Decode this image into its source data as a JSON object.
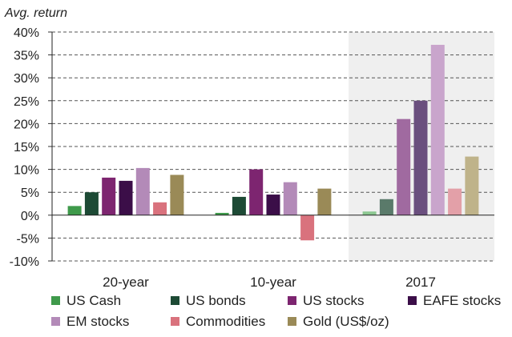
{
  "chart_data": {
    "type": "bar",
    "ylabel": "Avg.  return",
    "ylim": [
      -10,
      40
    ],
    "yticks": [
      40,
      35,
      30,
      25,
      20,
      15,
      10,
      5,
      0,
      -5,
      -10
    ],
    "ytick_labels": [
      "40%",
      "35%",
      "30%",
      "25%",
      "20%",
      "15%",
      "10%",
      "5%",
      "0%",
      "-5%",
      "-10%"
    ],
    "grid": "horizontal dashed",
    "legend_placement": "bottom",
    "categories": [
      "20-year",
      "10-year",
      "2017"
    ],
    "highlight_category": "2017",
    "series": [
      {
        "name": "US Cash",
        "values": [
          2.0,
          0.5,
          0.8
        ]
      },
      {
        "name": "US bonds",
        "values": [
          5.0,
          4.0,
          3.5
        ]
      },
      {
        "name": "US stocks",
        "values": [
          8.2,
          10.0,
          21.0
        ]
      },
      {
        "name": "EAFE stocks",
        "values": [
          7.5,
          4.5,
          25.0
        ]
      },
      {
        "name": "EM stocks",
        "values": [
          10.3,
          7.2,
          37.2
        ]
      },
      {
        "name": "Commodities",
        "values": [
          2.8,
          -5.5,
          5.8
        ]
      },
      {
        "name": "Gold (US$/oz)",
        "values": [
          8.8,
          5.8,
          12.8
        ]
      }
    ],
    "colors": {
      "normal": [
        "#3f9a4b",
        "#1d4a35",
        "#7d2570",
        "#3b0e48",
        "#b38ab8",
        "#d9727d",
        "#9a8a57"
      ],
      "highlight": [
        "#8cc791",
        "#5a7a6a",
        "#a06aa0",
        "#6a4f7e",
        "#c9a5cc",
        "#e3a0a8",
        "#bfb38a"
      ],
      "highlight_band": "#efefef"
    }
  }
}
